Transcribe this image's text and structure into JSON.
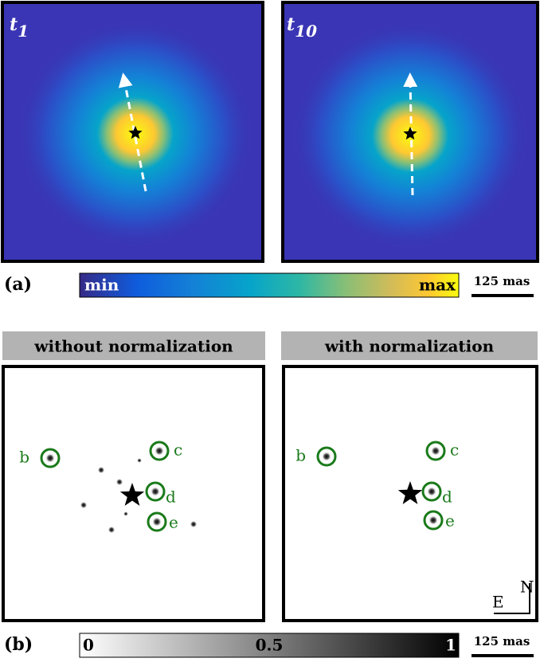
{
  "panel_a": {
    "label": "(a)",
    "images": [
      {
        "label": "t",
        "subscript": "1"
      },
      {
        "label": "t",
        "subscript": "10"
      }
    ],
    "colorbar": {
      "min": "min",
      "max": "max"
    },
    "scale_bar": "125 mas"
  },
  "panel_b": {
    "label": "(b)",
    "images": [
      {
        "title": "without normalization",
        "sources": [
          "b",
          "c",
          "d",
          "e"
        ]
      },
      {
        "title": "with normalization",
        "sources": [
          "b",
          "c",
          "d",
          "e"
        ]
      }
    ],
    "colorbar": {
      "ticks": [
        "0",
        "0.5",
        "1"
      ]
    },
    "scale_bar": "125 mas",
    "compass": {
      "north": "N",
      "east": "E"
    }
  }
}
